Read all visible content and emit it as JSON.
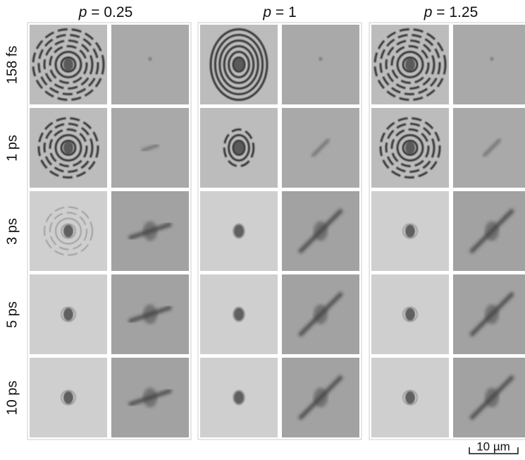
{
  "columns": [
    "p = 0.25",
    "p = 1",
    "p = 1.25"
  ],
  "rows": [
    "158 fs",
    "1 ps",
    "3 ps",
    "5 ps",
    "10 ps"
  ],
  "scale_bar": "10 µm"
}
